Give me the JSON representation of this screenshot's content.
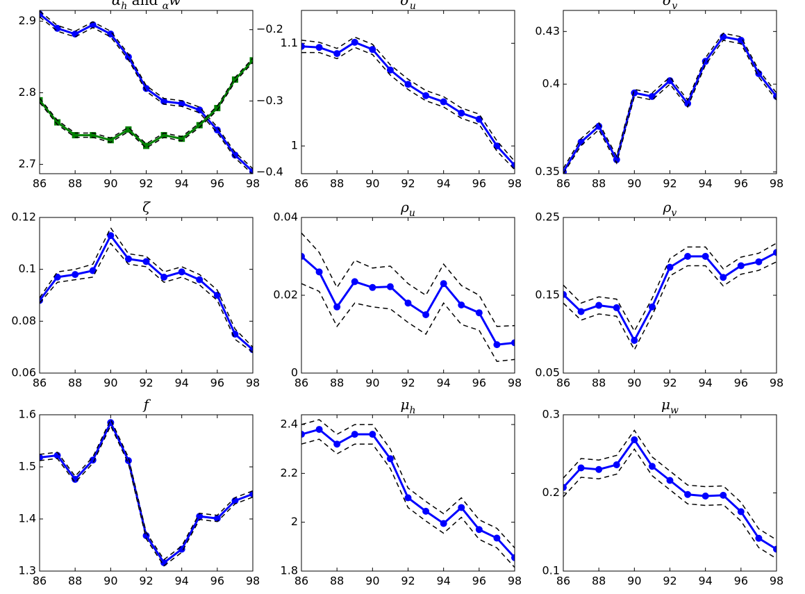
{
  "chart_data": [
    {
      "type": "line",
      "title": [
        "α",
        "h",
        " and ",
        "α",
        "w"
      ],
      "x": [
        86,
        87,
        88,
        89,
        90,
        91,
        92,
        93,
        94,
        95,
        96,
        97,
        98
      ],
      "xlim": [
        86,
        98
      ],
      "xticks": [
        86,
        88,
        90,
        92,
        94,
        96,
        98
      ],
      "ylim": [
        2.687,
        2.915
      ],
      "yticks": [
        2.7,
        2.8,
        2.9
      ],
      "y2lim": [
        -0.402,
        -0.173
      ],
      "y2ticks": [
        {
          "value": -0.4,
          "label": "−0.4"
        },
        {
          "value": -0.3,
          "label": "−0.3"
        },
        {
          "value": -0.2,
          "label": "−0.2"
        }
      ],
      "series": [
        {
          "color": "#0000ff",
          "marker": "circle",
          "values": [
            2.91,
            2.89,
            2.882,
            2.895,
            2.882,
            2.85,
            2.806,
            2.788,
            2.785,
            2.776,
            2.748,
            2.713,
            2.69
          ]
        },
        {
          "color": "#000000",
          "dash": true,
          "values": [
            2.914,
            2.894,
            2.886,
            2.899,
            2.886,
            2.854,
            2.81,
            2.792,
            2.789,
            2.78,
            2.752,
            2.717,
            2.694
          ]
        },
        {
          "color": "#000000",
          "dash": true,
          "values": [
            2.906,
            2.886,
            2.878,
            2.891,
            2.878,
            2.846,
            2.802,
            2.784,
            2.781,
            2.772,
            2.744,
            2.709,
            2.686
          ]
        },
        {
          "color": "#008000",
          "marker": "square",
          "axis": "y2",
          "values": [
            -0.299,
            -0.33,
            -0.348,
            -0.348,
            -0.355,
            -0.34,
            -0.363,
            -0.348,
            -0.353,
            -0.334,
            -0.31,
            -0.27,
            -0.243
          ]
        },
        {
          "color": "#000000",
          "dash": true,
          "axis": "y2",
          "values": [
            -0.296,
            -0.327,
            -0.345,
            -0.345,
            -0.352,
            -0.337,
            -0.36,
            -0.345,
            -0.35,
            -0.331,
            -0.307,
            -0.267,
            -0.24
          ]
        },
        {
          "color": "#000000",
          "dash": true,
          "axis": "y2",
          "values": [
            -0.302,
            -0.333,
            -0.351,
            -0.351,
            -0.358,
            -0.343,
            -0.366,
            -0.351,
            -0.356,
            -0.337,
            -0.313,
            -0.273,
            -0.246
          ]
        }
      ]
    },
    {
      "type": "line",
      "title": [
        "σ",
        "u"
      ],
      "x": [
        86,
        87,
        88,
        89,
        90,
        91,
        92,
        93,
        94,
        95,
        96,
        97,
        98
      ],
      "xlim": [
        86,
        98
      ],
      "xticks": [
        86,
        88,
        90,
        92,
        94,
        96,
        98
      ],
      "ylim": [
        0.973,
        1.132
      ],
      "yticks": [
        1,
        1.1
      ],
      "series": [
        {
          "color": "#0000ff",
          "marker": "circle",
          "values": [
            1.097,
            1.096,
            1.09,
            1.101,
            1.094,
            1.074,
            1.06,
            1.049,
            1.043,
            1.032,
            1.026,
            1.0,
            0.981
          ]
        },
        {
          "color": "#000000",
          "dash": true,
          "values": [
            1.103,
            1.101,
            1.095,
            1.106,
            1.099,
            1.079,
            1.065,
            1.054,
            1.048,
            1.037,
            1.031,
            1.005,
            0.985
          ]
        },
        {
          "color": "#000000",
          "dash": true,
          "values": [
            1.091,
            1.091,
            1.085,
            1.096,
            1.089,
            1.069,
            1.055,
            1.044,
            1.038,
            1.027,
            1.021,
            0.995,
            0.977
          ]
        }
      ]
    },
    {
      "type": "line",
      "title": [
        "σ",
        "v"
      ],
      "x": [
        86,
        87,
        88,
        89,
        90,
        91,
        92,
        93,
        94,
        95,
        96,
        97,
        98
      ],
      "xlim": [
        86,
        98
      ],
      "xticks": [
        86,
        88,
        90,
        92,
        94,
        96,
        98
      ],
      "ylim": [
        0.349,
        0.442
      ],
      "yticks": [
        0.35,
        0.4,
        0.43
      ],
      "series": [
        {
          "color": "#0000ff",
          "marker": "circle",
          "values": [
            0.35,
            0.367,
            0.376,
            0.357,
            0.395,
            0.393,
            0.402,
            0.389,
            0.413,
            0.427,
            0.425,
            0.406,
            0.393
          ]
        },
        {
          "color": "#000000",
          "dash": true,
          "values": [
            0.352,
            0.369,
            0.378,
            0.359,
            0.397,
            0.395,
            0.404,
            0.391,
            0.415,
            0.429,
            0.427,
            0.408,
            0.395
          ]
        },
        {
          "color": "#000000",
          "dash": true,
          "values": [
            0.349,
            0.365,
            0.374,
            0.355,
            0.393,
            0.391,
            0.4,
            0.387,
            0.411,
            0.425,
            0.423,
            0.404,
            0.391
          ]
        }
      ]
    },
    {
      "type": "line",
      "title": [
        "ζ"
      ],
      "x": [
        86,
        87,
        88,
        89,
        90,
        91,
        92,
        93,
        94,
        95,
        96,
        97,
        98
      ],
      "xlim": [
        86,
        98
      ],
      "xticks": [
        86,
        88,
        90,
        92,
        94,
        96,
        98
      ],
      "ylim": [
        0.06,
        0.12
      ],
      "yticks": [
        0.06,
        0.08,
        0.1,
        0.12
      ],
      "series": [
        {
          "color": "#0000ff",
          "marker": "circle",
          "values": [
            0.088,
            0.097,
            0.098,
            0.0995,
            0.113,
            0.104,
            0.103,
            0.097,
            0.099,
            0.096,
            0.09,
            0.075,
            0.069
          ]
        },
        {
          "color": "#000000",
          "dash": true,
          "values": [
            0.089,
            0.099,
            0.1,
            0.102,
            0.116,
            0.106,
            0.105,
            0.099,
            0.101,
            0.098,
            0.092,
            0.077,
            0.07
          ]
        },
        {
          "color": "#000000",
          "dash": true,
          "values": [
            0.087,
            0.095,
            0.096,
            0.097,
            0.11,
            0.102,
            0.101,
            0.095,
            0.097,
            0.094,
            0.088,
            0.073,
            0.068
          ]
        }
      ]
    },
    {
      "type": "line",
      "title": [
        "ρ",
        "u"
      ],
      "x": [
        86,
        87,
        88,
        89,
        90,
        91,
        92,
        93,
        94,
        95,
        96,
        97,
        98
      ],
      "xlim": [
        86,
        98
      ],
      "xticks": [
        86,
        88,
        90,
        92,
        94,
        96,
        98
      ],
      "ylim": [
        0,
        0.04
      ],
      "yticks": [
        0,
        0.02,
        0.04
      ],
      "series": [
        {
          "color": "#0000ff",
          "marker": "circle",
          "values": [
            0.03,
            0.026,
            0.017,
            0.0235,
            0.022,
            0.0222,
            0.018,
            0.015,
            0.023,
            0.0175,
            0.0155,
            0.0073,
            0.0078
          ]
        },
        {
          "color": "#000000",
          "dash": true,
          "values": [
            0.036,
            0.031,
            0.022,
            0.029,
            0.027,
            0.0275,
            0.023,
            0.02,
            0.028,
            0.0225,
            0.02,
            0.012,
            0.0122
          ]
        },
        {
          "color": "#000000",
          "dash": true,
          "values": [
            0.023,
            0.021,
            0.012,
            0.018,
            0.017,
            0.0165,
            0.013,
            0.01,
            0.018,
            0.0125,
            0.011,
            0.003,
            0.0035
          ]
        }
      ]
    },
    {
      "type": "line",
      "title": [
        "ρ",
        "v"
      ],
      "x": [
        86,
        87,
        88,
        89,
        90,
        91,
        92,
        93,
        94,
        95,
        96,
        97,
        98
      ],
      "xlim": [
        86,
        98
      ],
      "xticks": [
        86,
        88,
        90,
        92,
        94,
        96,
        98
      ],
      "ylim": [
        0.05,
        0.25
      ],
      "yticks": [
        0.05,
        0.15,
        0.25
      ],
      "series": [
        {
          "color": "#0000ff",
          "marker": "circle",
          "values": [
            0.151,
            0.129,
            0.137,
            0.134,
            0.092,
            0.135,
            0.186,
            0.2,
            0.2,
            0.173,
            0.188,
            0.193,
            0.205
          ]
        },
        {
          "color": "#000000",
          "dash": true,
          "values": [
            0.163,
            0.14,
            0.148,
            0.145,
            0.104,
            0.146,
            0.197,
            0.212,
            0.212,
            0.184,
            0.199,
            0.204,
            0.217
          ]
        },
        {
          "color": "#000000",
          "dash": true,
          "values": [
            0.14,
            0.118,
            0.126,
            0.123,
            0.08,
            0.124,
            0.175,
            0.188,
            0.188,
            0.162,
            0.177,
            0.182,
            0.193
          ]
        }
      ]
    },
    {
      "type": "line",
      "title": [
        "f"
      ],
      "x": [
        86,
        87,
        88,
        89,
        90,
        91,
        92,
        93,
        94,
        95,
        96,
        97,
        98
      ],
      "xlim": [
        86,
        98
      ],
      "xticks": [
        86,
        88,
        90,
        92,
        94,
        96,
        98
      ],
      "ylim": [
        1.3,
        1.6
      ],
      "yticks": [
        1.3,
        1.4,
        1.5,
        1.6
      ],
      "series": [
        {
          "color": "#0000ff",
          "marker": "circle",
          "values": [
            1.518,
            1.522,
            1.476,
            1.513,
            1.585,
            1.512,
            1.368,
            1.316,
            1.342,
            1.405,
            1.401,
            1.435,
            1.448
          ]
        },
        {
          "color": "#000000",
          "dash": true,
          "values": [
            1.524,
            1.528,
            1.482,
            1.519,
            1.591,
            1.518,
            1.374,
            1.322,
            1.348,
            1.411,
            1.407,
            1.441,
            1.454
          ]
        },
        {
          "color": "#000000",
          "dash": true,
          "values": [
            1.512,
            1.516,
            1.47,
            1.507,
            1.579,
            1.506,
            1.362,
            1.31,
            1.336,
            1.399,
            1.395,
            1.429,
            1.442
          ]
        }
      ]
    },
    {
      "type": "line",
      "title": [
        "μ",
        "h"
      ],
      "x": [
        86,
        87,
        88,
        89,
        90,
        91,
        92,
        93,
        94,
        95,
        96,
        97,
        98
      ],
      "xlim": [
        86,
        98
      ],
      "xticks": [
        86,
        88,
        90,
        92,
        94,
        96,
        98
      ],
      "ylim": [
        1.8,
        2.44
      ],
      "yticks": [
        1.8,
        2,
        2.2,
        2.4
      ],
      "series": [
        {
          "color": "#0000ff",
          "marker": "circle",
          "values": [
            2.36,
            2.38,
            2.32,
            2.36,
            2.36,
            2.26,
            2.1,
            2.045,
            1.995,
            2.06,
            1.97,
            1.935,
            1.855
          ]
        },
        {
          "color": "#000000",
          "dash": true,
          "values": [
            2.4,
            2.42,
            2.36,
            2.4,
            2.4,
            2.3,
            2.14,
            2.085,
            2.035,
            2.1,
            2.01,
            1.975,
            1.895
          ]
        },
        {
          "color": "#000000",
          "dash": true,
          "values": [
            2.32,
            2.34,
            2.28,
            2.32,
            2.32,
            2.22,
            2.06,
            2.005,
            1.955,
            2.02,
            1.93,
            1.895,
            1.815
          ]
        }
      ]
    },
    {
      "type": "line",
      "title": [
        "μ",
        "w"
      ],
      "x": [
        86,
        87,
        88,
        89,
        90,
        91,
        92,
        93,
        94,
        95,
        96,
        97,
        98
      ],
      "xlim": [
        86,
        98
      ],
      "xticks": [
        86,
        88,
        90,
        92,
        94,
        96,
        98
      ],
      "ylim": [
        0.1,
        0.3
      ],
      "yticks": [
        0.1,
        0.2,
        0.3
      ],
      "series": [
        {
          "color": "#0000ff",
          "marker": "circle",
          "values": [
            0.207,
            0.232,
            0.23,
            0.236,
            0.268,
            0.234,
            0.216,
            0.198,
            0.196,
            0.197,
            0.176,
            0.142,
            0.128
          ]
        },
        {
          "color": "#000000",
          "dash": true,
          "values": [
            0.219,
            0.244,
            0.242,
            0.248,
            0.28,
            0.246,
            0.228,
            0.21,
            0.208,
            0.209,
            0.188,
            0.154,
            0.14
          ]
        },
        {
          "color": "#000000",
          "dash": true,
          "values": [
            0.195,
            0.22,
            0.218,
            0.224,
            0.256,
            0.222,
            0.204,
            0.186,
            0.184,
            0.185,
            0.164,
            0.13,
            0.116
          ]
        }
      ]
    }
  ]
}
